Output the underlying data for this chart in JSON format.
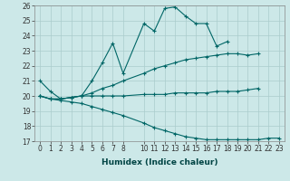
{
  "xlabel": "Humidex (Indice chaleur)",
  "background_color": "#cce8e8",
  "grid_color": "#aacccc",
  "line_color": "#006666",
  "hours": [
    0,
    1,
    2,
    3,
    4,
    5,
    6,
    7,
    8,
    10,
    11,
    12,
    13,
    14,
    15,
    16,
    17,
    18,
    19,
    20,
    21,
    22,
    23
  ],
  "line1": [
    21.0,
    20.3,
    19.8,
    19.9,
    20.0,
    21.0,
    22.2,
    23.5,
    21.5,
    24.8,
    24.3,
    25.8,
    25.9,
    25.3,
    24.8,
    24.8,
    23.3,
    23.6,
    null,
    null,
    null,
    null,
    null
  ],
  "line2": [
    20.0,
    19.8,
    19.8,
    19.9,
    20.0,
    20.2,
    20.5,
    20.7,
    21.0,
    21.5,
    21.8,
    22.0,
    22.2,
    22.4,
    22.5,
    22.6,
    22.7,
    22.8,
    22.8,
    22.7,
    22.8,
    null,
    null
  ],
  "line3": [
    20.0,
    19.8,
    19.8,
    19.9,
    20.0,
    20.0,
    20.0,
    20.0,
    20.0,
    20.1,
    20.1,
    20.1,
    20.2,
    20.2,
    20.2,
    20.2,
    20.3,
    20.3,
    20.3,
    20.4,
    20.5,
    null,
    null
  ],
  "line4": [
    20.0,
    19.8,
    19.7,
    19.6,
    19.5,
    19.3,
    19.1,
    18.9,
    18.7,
    18.2,
    17.9,
    17.7,
    17.5,
    17.3,
    17.2,
    17.1,
    17.1,
    17.1,
    17.1,
    17.1,
    17.1,
    17.2,
    17.2
  ],
  "ylim": [
    17,
    26
  ],
  "xlim": [
    -0.5,
    23.5
  ],
  "yticks": [
    17,
    18,
    19,
    20,
    21,
    22,
    23,
    24,
    25,
    26
  ],
  "xticks": [
    0,
    1,
    2,
    3,
    4,
    5,
    6,
    7,
    8,
    10,
    11,
    12,
    13,
    14,
    15,
    16,
    17,
    18,
    19,
    20,
    21,
    22,
    23
  ],
  "xlabel_fontsize": 6.5,
  "tick_fontsize": 5.5
}
